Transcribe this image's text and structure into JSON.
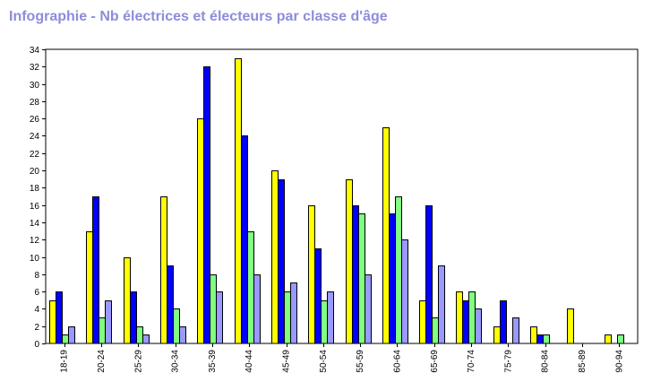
{
  "chart_data": {
    "type": "bar",
    "title": "Infographie - Nb électrices et électeurs par classe d'âge",
    "xlabel": "",
    "ylabel": "",
    "ylim": [
      0,
      34
    ],
    "ytick_step": 2,
    "grid": false,
    "legend": "none",
    "categories": [
      "18-19",
      "20-24",
      "25-29",
      "30-34",
      "35-39",
      "40-44",
      "45-49",
      "50-54",
      "55-59",
      "60-64",
      "65-69",
      "70-74",
      "75-79",
      "80-84",
      "85-89",
      "90-94"
    ],
    "series": [
      {
        "color": "#FFFF00",
        "values": [
          5,
          13,
          10,
          17,
          26,
          33,
          20,
          16,
          19,
          25,
          5,
          6,
          2,
          2,
          4,
          1
        ]
      },
      {
        "color": "#0000FF",
        "values": [
          6,
          17,
          6,
          9,
          32,
          24,
          19,
          11,
          16,
          15,
          16,
          5,
          5,
          1,
          0,
          0
        ]
      },
      {
        "color": "#80FF80",
        "values": [
          1,
          3,
          2,
          4,
          8,
          13,
          6,
          5,
          15,
          17,
          3,
          6,
          0,
          1,
          0,
          1
        ]
      },
      {
        "color": "#9999FF",
        "values": [
          2,
          5,
          1,
          2,
          6,
          8,
          7,
          6,
          8,
          12,
          9,
          4,
          3,
          0,
          0,
          0
        ]
      }
    ]
  }
}
